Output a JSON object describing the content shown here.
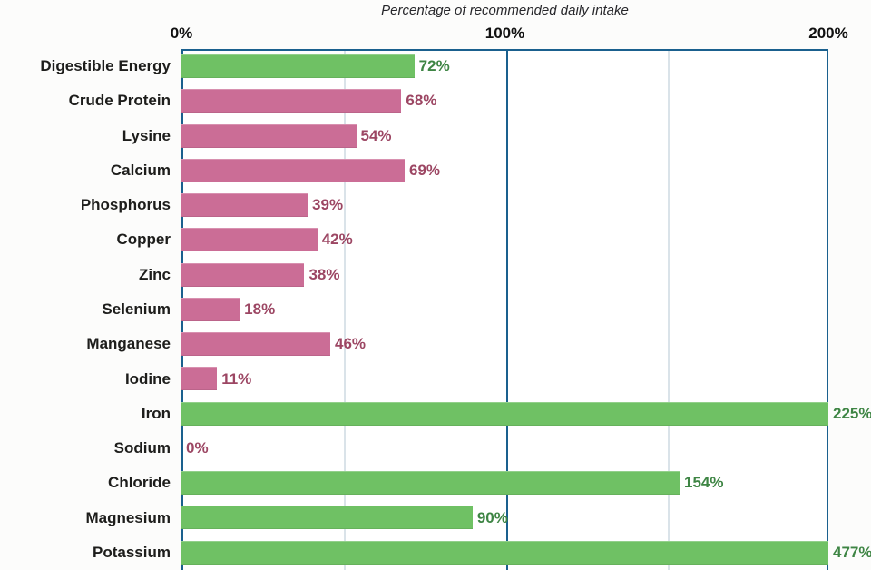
{
  "chart_data": {
    "type": "bar",
    "orientation": "horizontal",
    "title": "Percentage of recommended daily intake",
    "x_axis": {
      "position": "top",
      "range": [
        0,
        200
      ],
      "ticks": [
        {
          "label": "0%",
          "value": 0
        },
        {
          "label": "100%",
          "value": 100
        },
        {
          "label": "200%",
          "value": 200
        }
      ],
      "minor_gridlines_at": [
        50,
        150
      ]
    },
    "categories": [
      "Digestible Energy",
      "Crude Protein",
      "Lysine",
      "Calcium",
      "Phosphorus",
      "Copper",
      "Zinc",
      "Selenium",
      "Manganese",
      "Iodine",
      "Iron",
      "Sodium",
      "Chloride",
      "Magnesium",
      "Potassium"
    ],
    "values": [
      72,
      68,
      54,
      69,
      39,
      42,
      38,
      18,
      46,
      11,
      225,
      0,
      154,
      90,
      477
    ],
    "value_labels": [
      "72%",
      "68%",
      "54%",
      "69%",
      "39%",
      "42%",
      "38%",
      "18%",
      "46%",
      "11%",
      "225%",
      "0%",
      "154%",
      "90%",
      "477%"
    ],
    "bar_colors": [
      "green",
      "pink",
      "pink",
      "pink",
      "pink",
      "pink",
      "pink",
      "pink",
      "pink",
      "pink",
      "green",
      "pink",
      "green",
      "green",
      "green"
    ]
  },
  "colors": {
    "green_bar": "#6fc164",
    "pink_bar": "#cb6d96",
    "green_text": "#3e8544",
    "pink_text": "#9c4663",
    "grid_dark": "#1a608e",
    "grid_light": "#b5c7d3",
    "plot_background": "#ffffff",
    "page_background": "#fcfcfb",
    "category_text": "#1d1d1b",
    "tick_text": "#111111",
    "title_text": "#26262a"
  }
}
